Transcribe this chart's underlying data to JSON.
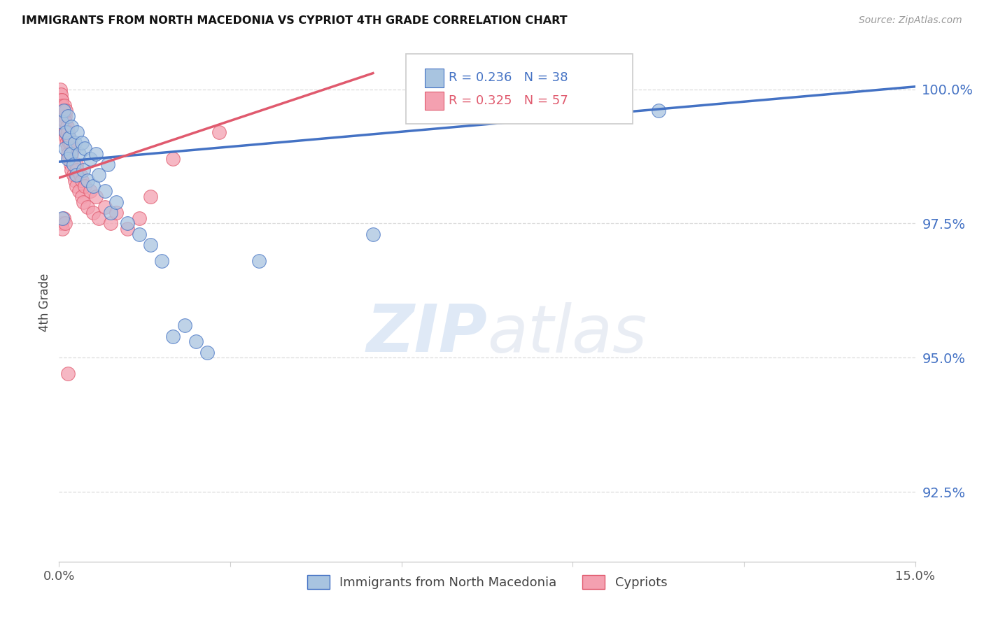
{
  "title": "IMMIGRANTS FROM NORTH MACEDONIA VS CYPRIOT 4TH GRADE CORRELATION CHART",
  "source": "Source: ZipAtlas.com",
  "ylabel": "4th Grade",
  "yticks": [
    92.5,
    95.0,
    97.5,
    100.0
  ],
  "ytick_labels": [
    "92.5%",
    "95.0%",
    "97.5%",
    "100.0%"
  ],
  "xmin": 0.0,
  "xmax": 15.0,
  "ymin": 91.2,
  "ymax": 100.85,
  "legend_blue_R": "R = 0.236",
  "legend_blue_N": "N = 38",
  "legend_pink_R": "R = 0.325",
  "legend_pink_N": "N = 57",
  "legend_label_blue": "Immigrants from North Macedonia",
  "legend_label_pink": "Cypriots",
  "blue_color": "#a8c4e0",
  "pink_color": "#f4a0b0",
  "blue_line_color": "#4472c4",
  "pink_line_color": "#e05a6e",
  "blue_scatter": [
    [
      0.05,
      99.4
    ],
    [
      0.08,
      99.6
    ],
    [
      0.1,
      98.9
    ],
    [
      0.12,
      99.2
    ],
    [
      0.15,
      99.5
    ],
    [
      0.15,
      98.7
    ],
    [
      0.18,
      99.1
    ],
    [
      0.2,
      98.8
    ],
    [
      0.22,
      99.3
    ],
    [
      0.25,
      98.6
    ],
    [
      0.28,
      99.0
    ],
    [
      0.3,
      98.4
    ],
    [
      0.32,
      99.2
    ],
    [
      0.35,
      98.8
    ],
    [
      0.4,
      99.0
    ],
    [
      0.42,
      98.5
    ],
    [
      0.45,
      98.9
    ],
    [
      0.5,
      98.3
    ],
    [
      0.55,
      98.7
    ],
    [
      0.6,
      98.2
    ],
    [
      0.65,
      98.8
    ],
    [
      0.7,
      98.4
    ],
    [
      0.8,
      98.1
    ],
    [
      0.85,
      98.6
    ],
    [
      0.9,
      97.7
    ],
    [
      1.0,
      97.9
    ],
    [
      1.2,
      97.5
    ],
    [
      1.4,
      97.3
    ],
    [
      1.6,
      97.1
    ],
    [
      1.8,
      96.8
    ],
    [
      2.0,
      95.4
    ],
    [
      2.2,
      95.6
    ],
    [
      2.4,
      95.3
    ],
    [
      2.6,
      95.1
    ],
    [
      3.5,
      96.8
    ],
    [
      5.5,
      97.3
    ],
    [
      10.5,
      99.6
    ],
    [
      0.06,
      97.6
    ]
  ],
  "pink_scatter": [
    [
      0.02,
      100.0
    ],
    [
      0.03,
      99.9
    ],
    [
      0.04,
      99.8
    ],
    [
      0.05,
      99.8
    ],
    [
      0.05,
      99.6
    ],
    [
      0.06,
      99.7
    ],
    [
      0.07,
      99.6
    ],
    [
      0.08,
      99.5
    ],
    [
      0.08,
      99.3
    ],
    [
      0.09,
      99.7
    ],
    [
      0.1,
      99.5
    ],
    [
      0.1,
      99.2
    ],
    [
      0.11,
      99.4
    ],
    [
      0.12,
      99.1
    ],
    [
      0.12,
      99.6
    ],
    [
      0.13,
      99.0
    ],
    [
      0.14,
      99.3
    ],
    [
      0.15,
      98.9
    ],
    [
      0.15,
      99.2
    ],
    [
      0.16,
      98.8
    ],
    [
      0.17,
      99.1
    ],
    [
      0.18,
      98.7
    ],
    [
      0.18,
      99.0
    ],
    [
      0.2,
      98.6
    ],
    [
      0.2,
      99.0
    ],
    [
      0.22,
      98.8
    ],
    [
      0.22,
      98.5
    ],
    [
      0.25,
      98.4
    ],
    [
      0.25,
      98.9
    ],
    [
      0.28,
      98.3
    ],
    [
      0.3,
      98.6
    ],
    [
      0.3,
      98.2
    ],
    [
      0.32,
      98.5
    ],
    [
      0.35,
      98.1
    ],
    [
      0.38,
      98.4
    ],
    [
      0.4,
      98.0
    ],
    [
      0.4,
      98.3
    ],
    [
      0.42,
      97.9
    ],
    [
      0.45,
      98.2
    ],
    [
      0.5,
      97.8
    ],
    [
      0.55,
      98.1
    ],
    [
      0.6,
      97.7
    ],
    [
      0.65,
      98.0
    ],
    [
      0.7,
      97.6
    ],
    [
      0.8,
      97.8
    ],
    [
      0.9,
      97.5
    ],
    [
      1.0,
      97.7
    ],
    [
      1.2,
      97.4
    ],
    [
      1.4,
      97.6
    ],
    [
      1.6,
      98.0
    ],
    [
      0.04,
      97.5
    ],
    [
      0.06,
      97.4
    ],
    [
      0.08,
      97.6
    ],
    [
      2.0,
      98.7
    ],
    [
      2.8,
      99.2
    ],
    [
      0.15,
      94.7
    ],
    [
      0.1,
      97.5
    ]
  ],
  "blue_line_x": [
    0.0,
    15.0
  ],
  "blue_line_y": [
    98.65,
    100.05
  ],
  "pink_line_x": [
    0.0,
    5.5
  ],
  "pink_line_y": [
    98.35,
    100.3
  ],
  "watermark_zip": "ZIP",
  "watermark_atlas": "atlas",
  "background_color": "#ffffff",
  "grid_color": "#dddddd",
  "axis_color": "#cccccc"
}
